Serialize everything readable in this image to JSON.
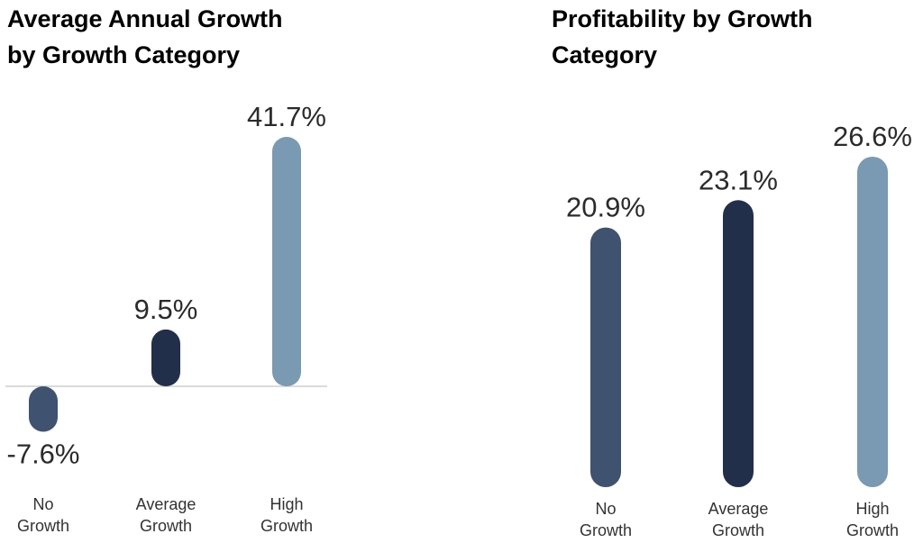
{
  "chart_data": [
    {
      "type": "bar",
      "title_lines": [
        "Average Annual Growth",
        "by Growth Category"
      ],
      "categories": [
        [
          "No",
          "Growth"
        ],
        [
          "Average",
          "Growth"
        ],
        [
          "High",
          "Growth"
        ]
      ],
      "values": [
        -7.6,
        9.5,
        41.7
      ],
      "value_labels": [
        "-7.6%",
        "9.5%",
        "41.7%"
      ],
      "colors": [
        "#3f526f",
        "#222f4a",
        "#7a99b2"
      ],
      "baseline_color": "#cfcfcf",
      "ylim": [
        -7.6,
        41.7
      ],
      "grid": false
    },
    {
      "type": "bar",
      "title_lines": [
        "Profitability by Growth",
        "Category"
      ],
      "categories": [
        [
          "No",
          "Growth"
        ],
        [
          "Average",
          "Growth"
        ],
        [
          "High",
          "Growth"
        ]
      ],
      "values": [
        20.9,
        23.1,
        26.6
      ],
      "value_labels": [
        "20.9%",
        "23.1%",
        "26.6%"
      ],
      "colors": [
        "#3f526f",
        "#222f4a",
        "#7a99b2"
      ],
      "ylim": [
        0,
        26.6
      ],
      "grid": false
    }
  ]
}
